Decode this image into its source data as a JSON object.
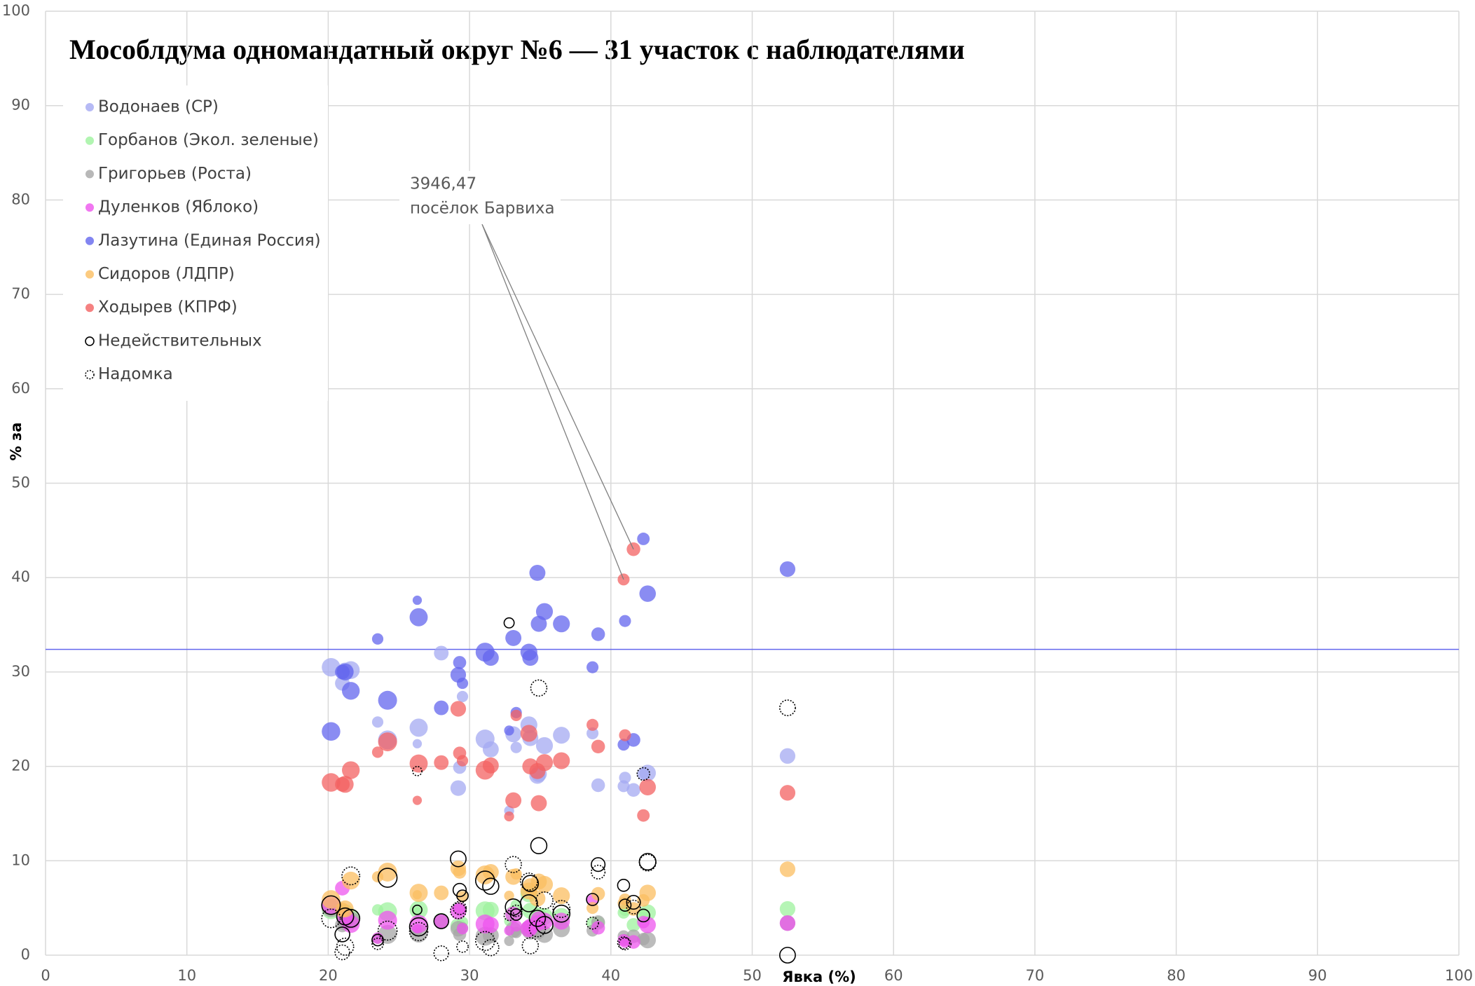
{
  "chart_data": {
    "type": "bubble",
    "title": "Мособлдума одномандатный округ №6 — 31 участок с наблюдателями",
    "x_label": "Явка (%)",
    "y_label": "% за",
    "xlim": [
      0,
      100
    ],
    "xticks": [
      0,
      10,
      20,
      30,
      40,
      50,
      60,
      70,
      80,
      90,
      100
    ],
    "ylim": [
      0,
      100
    ],
    "yticks": [
      0,
      10,
      20,
      30,
      40,
      50,
      60,
      70,
      80,
      90,
      100
    ],
    "grid": true,
    "x": [
      20.2,
      21.0,
      21.2,
      21.6,
      23.5,
      24.2,
      26.3,
      26.4,
      28.0,
      29.2,
      29.3,
      29.5,
      31.1,
      31.5,
      32.8,
      33.1,
      33.3,
      34.2,
      34.3,
      34.8,
      34.9,
      35.3,
      36.5,
      38.7,
      39.1,
      40.9,
      41.0,
      41.6,
      42.3,
      42.6,
      52.5
    ],
    "sizes": [
      2400,
      1500,
      2000,
      2200,
      900,
      2500,
      600,
      2300,
      1500,
      1700,
      1200,
      900,
      2500,
      1800,
      700,
      1800,
      900,
      2000,
      1800,
      1800,
      1800,
      2000,
      2000,
      1000,
      1300,
      1000,
      1000,
      1300,
      1100,
      1900,
      1700
    ],
    "series": [
      {
        "name": "Водонаев (СР)",
        "color": "#a4a9f2",
        "marker": "filled",
        "values": [
          30.5,
          28.8,
          30.1,
          30.2,
          24.7,
          22.8,
          22.4,
          24.1,
          32.0,
          17.7,
          19.9,
          27.4,
          22.9,
          21.8,
          15.3,
          23.4,
          22.0,
          24.4,
          23.0,
          19.0,
          19.2,
          22.2,
          23.3,
          23.5,
          18.0,
          17.9,
          18.8,
          17.5,
          19.2,
          19.3,
          21.1
        ]
      },
      {
        "name": "Горбанов (Экол. зеленые)",
        "color": "#9ef29e",
        "marker": "filled",
        "values": [
          4.8,
          4.3,
          4.5,
          4.0,
          4.8,
          4.6,
          4.6,
          4.8,
          3.7,
          3.1,
          4.9,
          3.5,
          4.7,
          4.8,
          3.6,
          4.4,
          5.3,
          6.5,
          4.7,
          3.7,
          4.2,
          4.1,
          4.1,
          3.4,
          3.4,
          4.5,
          4.8,
          3.2,
          4.3,
          4.5,
          4.9
        ]
      },
      {
        "name": "Григорьев (Роста)",
        "color": "#a6a6a6",
        "marker": "filled",
        "values": [
          5.0,
          3.2,
          3.5,
          3.7,
          1.8,
          2.2,
          2.4,
          2.3,
          3.5,
          2.8,
          2.2,
          2.9,
          2.0,
          2.1,
          1.5,
          2.7,
          2.4,
          2.8,
          2.5,
          2.5,
          3.0,
          2.2,
          2.8,
          2.6,
          3.5,
          2.0,
          1.6,
          2.0,
          1.7,
          1.6,
          3.4
        ]
      },
      {
        "name": "Дуленков (Яблоко)",
        "color": "#ee55ee",
        "marker": "filled",
        "values": [
          5.3,
          7.1,
          4.0,
          3.3,
          1.8,
          3.7,
          2.8,
          3.3,
          3.6,
          4.6,
          4.9,
          2.8,
          3.3,
          3.2,
          2.6,
          4.3,
          3.1,
          2.8,
          3.0,
          3.4,
          3.8,
          3.6,
          3.6,
          5.8,
          2.9,
          1.6,
          1.4,
          1.4,
          3.5,
          3.2,
          3.4
        ]
      },
      {
        "name": "Лазутина (Единая Россия)",
        "color": "#6366ee",
        "marker": "filled",
        "values": [
          23.7,
          30.0,
          30.0,
          28.0,
          33.5,
          27.0,
          37.6,
          35.8,
          26.2,
          29.7,
          31.0,
          28.8,
          32.1,
          31.5,
          23.8,
          33.6,
          25.7,
          32.1,
          31.5,
          40.5,
          35.1,
          36.4,
          35.1,
          30.5,
          34.0,
          22.3,
          35.4,
          22.8,
          44.1,
          38.3,
          40.9
        ]
      },
      {
        "name": "Сидоров (ЛДПР)",
        "color": "#fbbe60",
        "marker": "filled",
        "values": [
          5.9,
          4.8,
          4.9,
          7.9,
          8.3,
          8.8,
          6.4,
          6.6,
          6.6,
          9.2,
          8.8,
          6.2,
          8.5,
          8.8,
          6.3,
          8.3,
          8.6,
          6.8,
          7.3,
          6.0,
          7.8,
          7.5,
          6.3,
          5.0,
          6.5,
          5.5,
          5.9,
          4.9,
          5.8,
          6.6,
          9.1
        ]
      },
      {
        "name": "Ходырев (КПРФ)",
        "color": "#f36161",
        "marker": "filled",
        "values": [
          18.3,
          18.1,
          18.1,
          19.6,
          21.5,
          22.6,
          16.4,
          20.3,
          20.4,
          26.1,
          21.4,
          20.6,
          19.6,
          20.1,
          14.7,
          16.4,
          25.4,
          23.5,
          20.0,
          19.5,
          16.1,
          20.4,
          20.6,
          24.4,
          22.1,
          39.8,
          23.3,
          43.0,
          14.8,
          17.8,
          17.2
        ]
      },
      {
        "name": "Недействительных",
        "color": "#000000",
        "marker": "open",
        "values": [
          5.3,
          2.2,
          4.1,
          3.9,
          1.6,
          8.2,
          4.8,
          3.0,
          3.6,
          10.2,
          6.9,
          6.3,
          7.9,
          7.3,
          35.2,
          5.1,
          4.3,
          5.5,
          7.6,
          3.9,
          11.6,
          3.2,
          4.4,
          5.9,
          9.6,
          7.4,
          5.3,
          5.6,
          4.2,
          9.9,
          0.0
        ]
      },
      {
        "name": "Надомка",
        "color": "#000000",
        "marker": "dotted",
        "values": [
          3.9,
          0.3,
          0.9,
          8.4,
          1.2,
          2.6,
          19.5,
          2.5,
          0.2,
          4.7,
          5.0,
          0.9,
          1.5,
          0.8,
          4.2,
          9.6,
          4.7,
          7.8,
          1.0,
          2.8,
          28.3,
          5.8,
          4.9,
          3.4,
          8.8,
          1.3,
          1.2,
          5.1,
          19.2,
          9.8,
          26.2
        ]
      }
    ],
    "reference_line": {
      "value": 32.4,
      "color": "#6366ee"
    },
    "annotation": {
      "lines": [
        "3946,47",
        "посёлок Барвиха"
      ]
    }
  }
}
